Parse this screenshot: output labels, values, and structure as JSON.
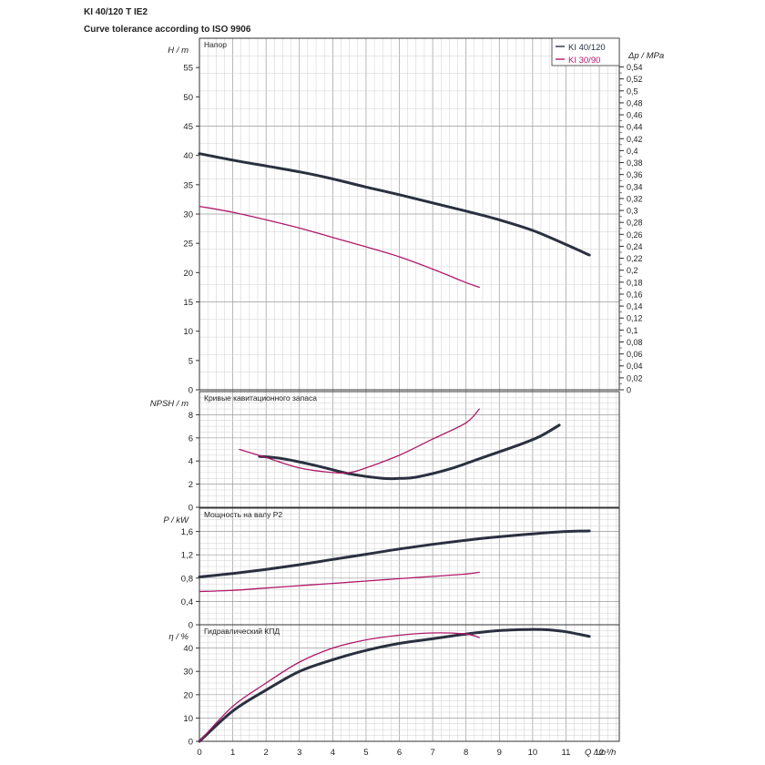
{
  "header": {
    "title": "KI 40/120 T IE2",
    "subtitle": "Curve tolerance according to ISO 9906"
  },
  "colors": {
    "ki40": "#2b3040",
    "ki30": "#b0186a",
    "grid": "#cfcfcf",
    "grid_major": "#9a9a9a",
    "frame": "#333333",
    "text": "#222222"
  },
  "chart_data": {
    "type": "line",
    "legend": [
      "KI 40/120",
      "KI 30/90"
    ],
    "legend_position": "top-right",
    "grid": true,
    "x_axis": {
      "label": "Q / m³/h",
      "range": [
        0,
        12.6
      ],
      "ticks": [
        "0",
        "1",
        "2",
        "3",
        "4",
        "5",
        "6",
        "7",
        "8",
        "9",
        "10",
        "11",
        "12"
      ]
    },
    "panels": [
      {
        "id": "head",
        "ylabel": "H / m",
        "title": "Напор",
        "ylim": [
          0,
          60
        ],
        "yticks": [
          "0",
          "5",
          "10",
          "15",
          "20",
          "25",
          "30",
          "35",
          "40",
          "45",
          "50",
          "55"
        ],
        "secondary_axis": {
          "label": "Δp / MPa",
          "range": [
            0,
            0.588
          ],
          "ticks": [
            "0",
            "0,02",
            "0,04",
            "0,06",
            "0,08",
            "0,1",
            "0,12",
            "0,14",
            "0,16",
            "0,18",
            "0,2",
            "0,22",
            "0,24",
            "0,26",
            "0,28",
            "0,3",
            "0,32",
            "0,34",
            "0,36",
            "0,38",
            "0,4",
            "0,42",
            "0,44",
            "0,46",
            "0,48",
            "0,5",
            "0,52",
            "0,54"
          ]
        },
        "series": [
          {
            "name": "KI 40/120",
            "x": [
              0,
              1,
              2,
              3,
              4,
              5,
              6,
              7,
              8,
              9,
              10,
              11,
              11.7
            ],
            "y": [
              40.3,
              39.2,
              38.2,
              37.2,
              36.0,
              34.6,
              33.3,
              31.9,
              30.5,
              29.0,
              27.2,
              24.8,
              23.0
            ]
          },
          {
            "name": "KI 30/90",
            "x": [
              0,
              1,
              2,
              3,
              4,
              5,
              6,
              7,
              8,
              8.4
            ],
            "y": [
              31.3,
              30.3,
              29.0,
              27.6,
              26.0,
              24.4,
              22.7,
              20.6,
              18.3,
              17.5
            ]
          }
        ]
      },
      {
        "id": "npsh",
        "ylabel": "NPSH / m",
        "title": "Кривые кавитационного запаса",
        "ylim": [
          0,
          10
        ],
        "yticks": [
          "0",
          "2",
          "4",
          "6",
          "8"
        ],
        "series": [
          {
            "name": "KI 40/120",
            "x": [
              1.8,
              2.5,
              3.5,
              4.5,
              5.5,
              6.0,
              6.5,
              7.5,
              8.5,
              9.5,
              10.2,
              10.8
            ],
            "y": [
              4.4,
              4.2,
              3.6,
              2.9,
              2.5,
              2.5,
              2.6,
              3.3,
              4.3,
              5.3,
              6.1,
              7.1
            ]
          },
          {
            "name": "KI 30/90",
            "x": [
              1.2,
              2.0,
              3.0,
              4.0,
              4.5,
              5.0,
              6.0,
              7.0,
              8.0,
              8.4
            ],
            "y": [
              5.0,
              4.3,
              3.4,
              3.0,
              3.0,
              3.4,
              4.5,
              5.9,
              7.3,
              8.5
            ]
          }
        ]
      },
      {
        "id": "power",
        "ylabel": "P / kW",
        "title": "Мощность на валу P2",
        "ylim": [
          0,
          2
        ],
        "yticks": [
          "0",
          "0,4",
          "0,8",
          "1,2",
          "1,6"
        ],
        "series": [
          {
            "name": "KI 40/120",
            "x": [
              0,
              1,
              2,
              3,
              4,
              5,
              6,
              7,
              8,
              9,
              10,
              11,
              11.7
            ],
            "y": [
              0.82,
              0.88,
              0.95,
              1.03,
              1.12,
              1.21,
              1.3,
              1.38,
              1.45,
              1.51,
              1.56,
              1.6,
              1.61
            ]
          },
          {
            "name": "KI 30/90",
            "x": [
              0,
              1,
              2,
              3,
              4,
              5,
              6,
              7,
              8,
              8.4
            ],
            "y": [
              0.57,
              0.59,
              0.63,
              0.67,
              0.71,
              0.75,
              0.79,
              0.83,
              0.87,
              0.9
            ]
          }
        ]
      },
      {
        "id": "efficiency",
        "ylabel": "η / %",
        "title": "Гидравлический КПД",
        "ylim": [
          0,
          50
        ],
        "yticks": [
          "0",
          "10",
          "20",
          "30",
          "40"
        ],
        "series": [
          {
            "name": "KI 40/120",
            "x": [
              0,
              1,
              2,
              3,
              4,
              5,
              6,
              7,
              8,
              9,
              10,
              10.5,
              11,
              11.7
            ],
            "y": [
              0,
              13,
              22,
              30,
              35,
              39,
              42,
              44,
              46,
              47.5,
              48,
              47.8,
              47,
              45
            ]
          },
          {
            "name": "KI 30/90",
            "x": [
              0,
              1,
              2,
              3,
              4,
              5,
              6,
              7,
              8,
              8.4
            ],
            "y": [
              0,
              15,
              25,
              34,
              40,
              43.5,
              45.5,
              46.5,
              46,
              44.5
            ]
          }
        ]
      }
    ]
  }
}
